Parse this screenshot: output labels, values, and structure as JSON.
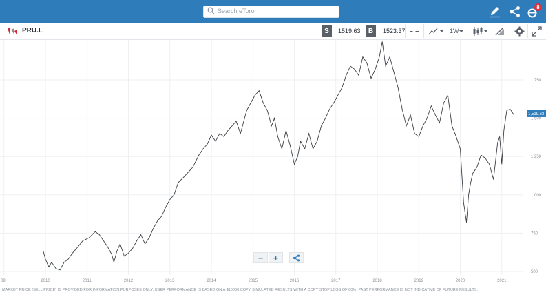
{
  "search": {
    "placeholder": "Search eToro"
  },
  "topbar": {
    "notification_count": "8"
  },
  "instrument": {
    "symbol": "PRU.L"
  },
  "prices": {
    "sell_label": "S",
    "sell_value": "1519.63",
    "buy_label": "B",
    "buy_value": "1523.37"
  },
  "toolbar": {
    "timeframe": "1W"
  },
  "colors": {
    "topbar": "#2f7cbb",
    "line": "#3a3d42",
    "accent": "#2f7cbb",
    "last_price_tag": "#2f7cbb"
  },
  "icons": [
    "search-icon",
    "pencil-icon",
    "share-icon",
    "etoro-notification-icon",
    "crosshair-icon",
    "indicators-icon",
    "timeframe-chevron-icon",
    "candles-icon",
    "drawing-icon",
    "gear-icon",
    "expand-icon",
    "zoom-out-icon",
    "zoom-in-icon",
    "share-chart-icon"
  ],
  "chart_data": {
    "type": "line",
    "x_tick_labels": [
      "09",
      "2010",
      "2011",
      "2012",
      "2013",
      "2014",
      "2015",
      "2016",
      "2017",
      "2018",
      "2019",
      "2020",
      "2021"
    ],
    "y_tick_labels": [
      "1,750",
      "1,500",
      "1,250",
      "1,000",
      "750",
      "500"
    ],
    "last_price_label": "1,519.63",
    "ylim": [
      480,
      2050
    ],
    "grid": true,
    "series": [
      {
        "x": [
          2009.95,
          2010.0,
          2010.08,
          2010.15,
          2010.25,
          2010.35,
          2010.45,
          2010.55,
          2010.65,
          2010.75,
          2010.9,
          2011.05,
          2011.2,
          2011.3,
          2011.4,
          2011.5,
          2011.6,
          2011.65,
          2011.72,
          2011.8,
          2011.9,
          2012.0,
          2012.1,
          2012.2,
          2012.3,
          2012.4,
          2012.5,
          2012.6,
          2012.7,
          2012.8,
          2012.9,
          2013.0,
          2013.1,
          2013.2,
          2013.35,
          2013.45,
          2013.55,
          2013.7,
          2013.8,
          2013.9,
          2014.0,
          2014.1,
          2014.2,
          2014.3,
          2014.4,
          2014.5,
          2014.6,
          2014.7,
          2014.85,
          2014.95,
          2015.05,
          2015.15,
          2015.25,
          2015.35,
          2015.45,
          2015.52,
          2015.6,
          2015.7,
          2015.8,
          2015.9,
          2016.0,
          2016.08,
          2016.15,
          2016.25,
          2016.35,
          2016.45,
          2016.55,
          2016.65,
          2016.75,
          2016.85,
          2016.95,
          2017.05,
          2017.15,
          2017.25,
          2017.35,
          2017.45,
          2017.55,
          2017.65,
          2017.75,
          2017.85,
          2017.95,
          2018.05,
          2018.12,
          2018.2,
          2018.3,
          2018.4,
          2018.5,
          2018.6,
          2018.7,
          2018.8,
          2018.9,
          2019.0,
          2019.1,
          2019.2,
          2019.3,
          2019.4,
          2019.5,
          2019.6,
          2019.7,
          2019.8,
          2019.9,
          2020.0,
          2020.08,
          2020.15,
          2020.2,
          2020.25,
          2020.3,
          2020.4,
          2020.5,
          2020.6,
          2020.7,
          2020.8,
          2020.9,
          2020.95,
          2021.0,
          2021.05,
          2021.12,
          2021.2,
          2021.3
        ],
        "y": [
          630,
          580,
          530,
          560,
          520,
          510,
          560,
          580,
          620,
          650,
          700,
          720,
          760,
          740,
          700,
          660,
          610,
          560,
          630,
          680,
          600,
          620,
          650,
          700,
          740,
          680,
          720,
          780,
          830,
          860,
          920,
          970,
          1000,
          1080,
          1120,
          1150,
          1180,
          1260,
          1300,
          1330,
          1390,
          1350,
          1400,
          1380,
          1420,
          1450,
          1480,
          1400,
          1550,
          1600,
          1650,
          1680,
          1600,
          1550,
          1450,
          1500,
          1380,
          1300,
          1420,
          1320,
          1200,
          1250,
          1350,
          1300,
          1400,
          1300,
          1350,
          1450,
          1500,
          1560,
          1600,
          1650,
          1700,
          1780,
          1840,
          1820,
          1780,
          1900,
          1860,
          1760,
          1820,
          1900,
          2000,
          1840,
          1900,
          1800,
          1700,
          1560,
          1450,
          1520,
          1400,
          1380,
          1450,
          1500,
          1580,
          1520,
          1470,
          1600,
          1650,
          1450,
          1380,
          1300,
          950,
          820,
          1000,
          1080,
          1140,
          1180,
          1260,
          1240,
          1200,
          1100,
          1340,
          1380,
          1200,
          1420,
          1550,
          1560,
          1520
        ]
      }
    ]
  },
  "chart_controls": {
    "zoom_out": "−",
    "zoom_in": "+"
  },
  "disclaimer": "MARKET PRICE (SELL PRICE) IS PROVIDED FOR INFORMATION PURPOSES ONLY. USER PERFORMANCE IS BASED ON A $10000 COPY SIMULATED RESULTS WITH A COPY STOP LOSS OF 60%. PAST PERFORMANCE IS NOT INDICATIVE OF FUTURE RESULTS."
}
